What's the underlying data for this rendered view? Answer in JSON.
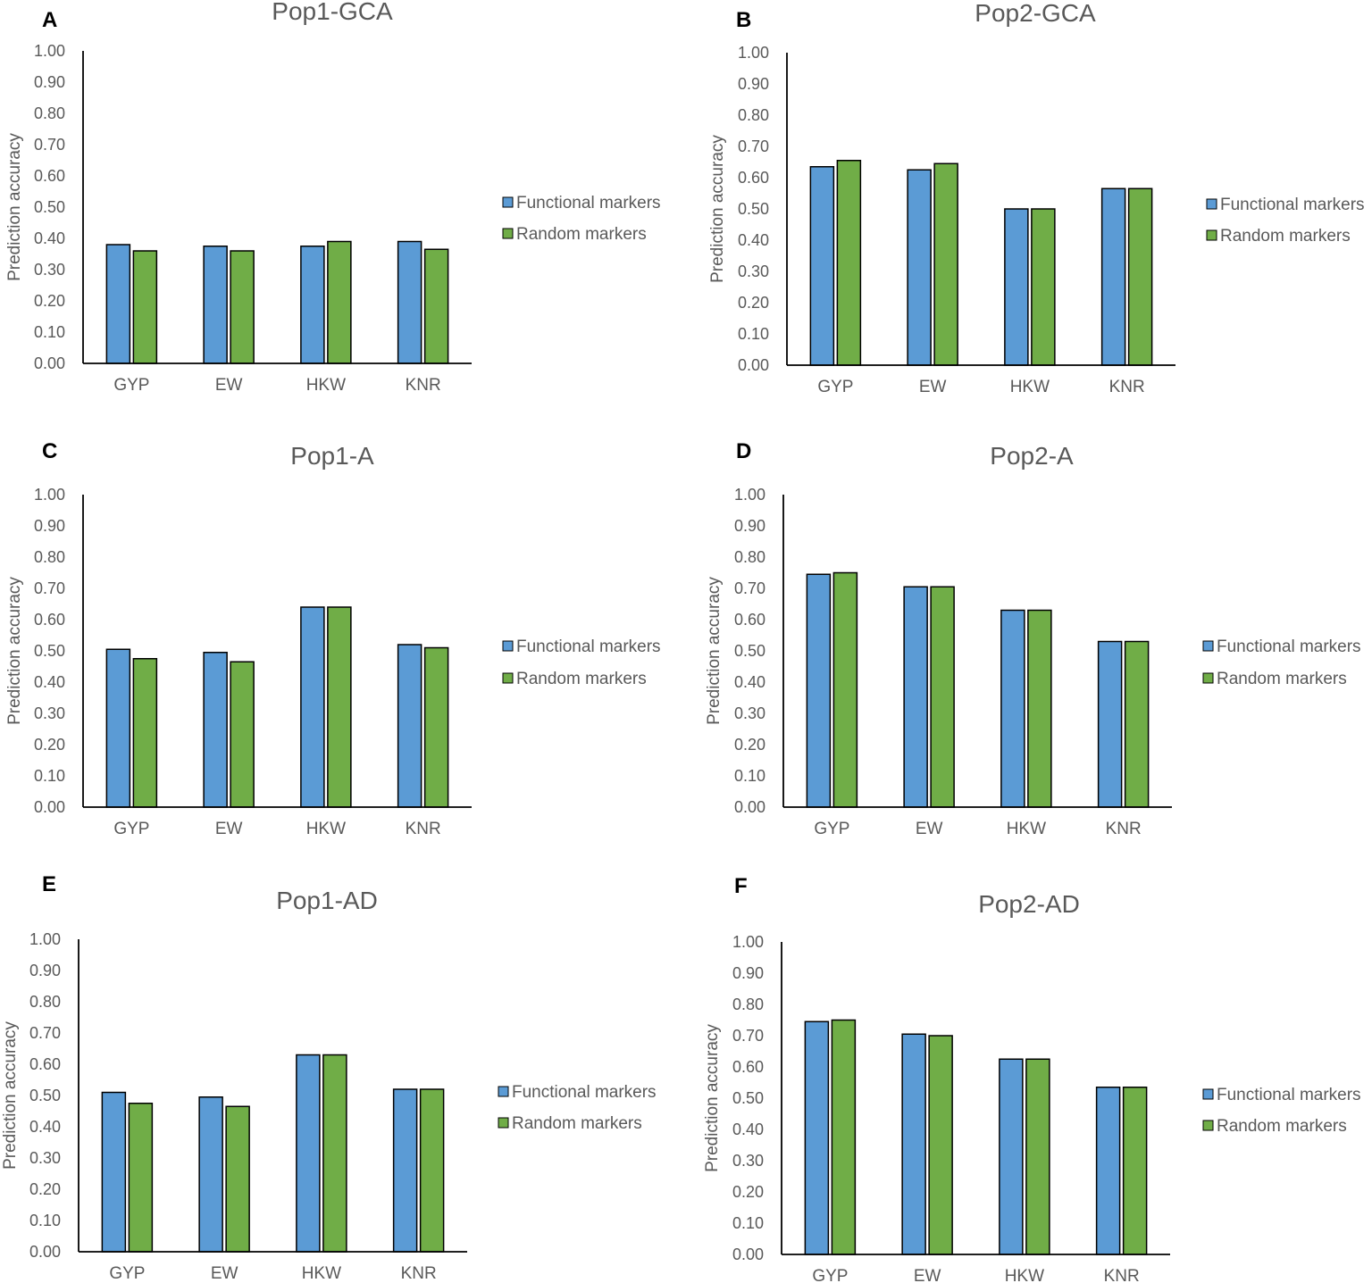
{
  "colors": {
    "functional": "#5b9bd5",
    "random": "#70ad47",
    "axis": "#000000",
    "text": "#595959"
  },
  "chart_data": [
    {
      "type": "bar",
      "panel": "A",
      "title": "Pop1-GCA",
      "xlabel": "",
      "ylabel": "Prediction accuracy",
      "ylim": [
        0,
        1
      ],
      "yticks": [
        "0.00",
        "0.10",
        "0.20",
        "0.30",
        "0.40",
        "0.50",
        "0.60",
        "0.70",
        "0.80",
        "0.90",
        "1.00"
      ],
      "grid": false,
      "legend_position": "right",
      "categories": [
        "GYP",
        "EW",
        "HKW",
        "KNR"
      ],
      "series": [
        {
          "name": "Functional markers",
          "values": [
            0.38,
            0.375,
            0.375,
            0.39
          ]
        },
        {
          "name": "Random markers",
          "values": [
            0.36,
            0.36,
            0.39,
            0.365
          ]
        }
      ]
    },
    {
      "type": "bar",
      "panel": "B",
      "title": "Pop2-GCA",
      "xlabel": "",
      "ylabel": "Prediction accuracy",
      "ylim": [
        0,
        1
      ],
      "yticks": [
        "0.00",
        "0.10",
        "0.20",
        "0.30",
        "0.40",
        "0.50",
        "0.60",
        "0.70",
        "0.80",
        "0.90",
        "1.00"
      ],
      "grid": false,
      "legend_position": "right",
      "categories": [
        "GYP",
        "EW",
        "HKW",
        "KNR"
      ],
      "series": [
        {
          "name": "Functional markers",
          "values": [
            0.635,
            0.625,
            0.5,
            0.565
          ]
        },
        {
          "name": "Random markers",
          "values": [
            0.655,
            0.645,
            0.5,
            0.565
          ]
        }
      ]
    },
    {
      "type": "bar",
      "panel": "C",
      "title": "Pop1-A",
      "xlabel": "",
      "ylabel": "Prediction accuracy",
      "ylim": [
        0,
        1
      ],
      "yticks": [
        "0.00",
        "0.10",
        "0.20",
        "0.30",
        "0.40",
        "0.50",
        "0.60",
        "0.70",
        "0.80",
        "0.90",
        "1.00"
      ],
      "grid": false,
      "legend_position": "right",
      "categories": [
        "GYP",
        "EW",
        "HKW",
        "KNR"
      ],
      "series": [
        {
          "name": "Functional markers",
          "values": [
            0.505,
            0.495,
            0.64,
            0.52
          ]
        },
        {
          "name": "Random markers",
          "values": [
            0.475,
            0.465,
            0.64,
            0.51
          ]
        }
      ]
    },
    {
      "type": "bar",
      "panel": "D",
      "title": "Pop2-A",
      "xlabel": "",
      "ylabel": "Prediction accuracy",
      "ylim": [
        0,
        1
      ],
      "yticks": [
        "0.00",
        "0.10",
        "0.20",
        "0.30",
        "0.40",
        "0.50",
        "0.60",
        "0.70",
        "0.80",
        "0.90",
        "1.00"
      ],
      "grid": false,
      "legend_position": "right",
      "categories": [
        "GYP",
        "EW",
        "HKW",
        "KNR"
      ],
      "series": [
        {
          "name": "Functional markers",
          "values": [
            0.745,
            0.705,
            0.63,
            0.53
          ]
        },
        {
          "name": "Random markers",
          "values": [
            0.75,
            0.705,
            0.63,
            0.53
          ]
        }
      ]
    },
    {
      "type": "bar",
      "panel": "E",
      "title": "Pop1-AD",
      "xlabel": "",
      "ylabel": "Prediction accuracy",
      "ylim": [
        0,
        1
      ],
      "yticks": [
        "0.00",
        "0.10",
        "0.20",
        "0.30",
        "0.40",
        "0.50",
        "0.60",
        "0.70",
        "0.80",
        "0.90",
        "1.00"
      ],
      "grid": false,
      "legend_position": "right",
      "categories": [
        "GYP",
        "EW",
        "HKW",
        "KNR"
      ],
      "series": [
        {
          "name": "Functional markers",
          "values": [
            0.51,
            0.495,
            0.63,
            0.52
          ]
        },
        {
          "name": "Random markers",
          "values": [
            0.475,
            0.465,
            0.63,
            0.52
          ]
        }
      ]
    },
    {
      "type": "bar",
      "panel": "F",
      "title": "Pop2-AD",
      "xlabel": "",
      "ylabel": "Prediction accuracy",
      "ylim": [
        0,
        1
      ],
      "yticks": [
        "0.00",
        "0.10",
        "0.20",
        "0.30",
        "0.40",
        "0.50",
        "0.60",
        "0.70",
        "0.80",
        "0.90",
        "1.00"
      ],
      "grid": false,
      "legend_position": "right",
      "categories": [
        "GYP",
        "EW",
        "HKW",
        "KNR"
      ],
      "series": [
        {
          "name": "Functional markers",
          "values": [
            0.745,
            0.705,
            0.625,
            0.535
          ]
        },
        {
          "name": "Random markers",
          "values": [
            0.75,
            0.7,
            0.625,
            0.535
          ]
        }
      ]
    }
  ]
}
